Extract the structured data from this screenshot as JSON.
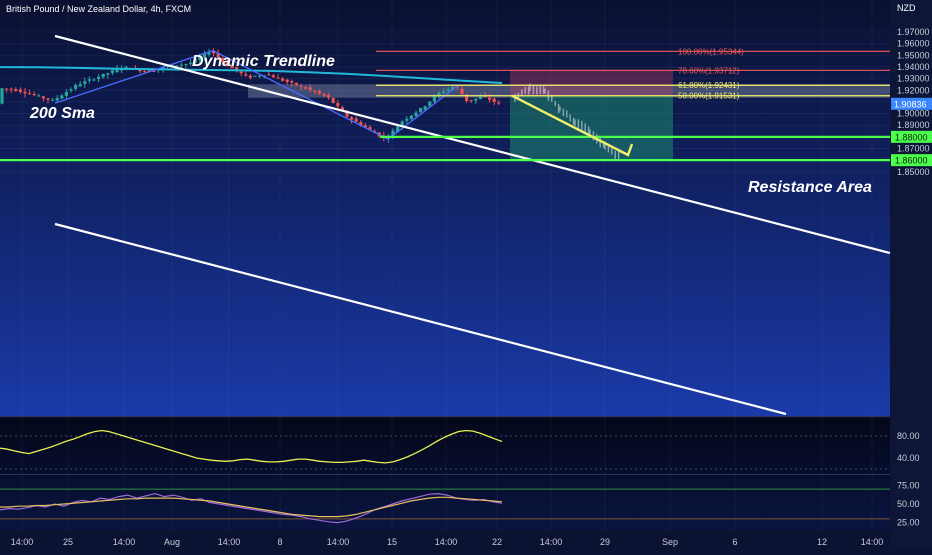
{
  "header": {
    "symbol_title": "British Pound / New Zealand Dollar, 4h, FXCM",
    "currency": "NZD"
  },
  "colors": {
    "background_top": "#0a1030",
    "background_bottom": "#1a3aa8",
    "up_candle": "#26a69a",
    "down_candle": "#ef5350",
    "sma": "#22b8d8",
    "fib_red": "#f05a5a",
    "fib_yellow": "#f5f06a",
    "support_green": "#4cff4c",
    "projection": "#f5f06a",
    "price_tag": "#3a86ff",
    "stoch_k": "#e8f050",
    "rsi_line": "#9c6ad8",
    "rsi_ma": "#e8c060"
  },
  "chart_data": [
    {
      "type": "candlestick",
      "title": "British Pound / New Zealand Dollar, 4h, FXCM",
      "ylabel": "NZD",
      "ylim": [
        1.8425,
        1.9753
      ],
      "grid": true,
      "price_ticks": [
        "1.97000",
        "1.96000",
        "1.95000",
        "1.94000",
        "1.93000",
        "1.92000",
        "1.91000",
        "1.90000",
        "1.89000",
        "1.88000",
        "1.87000",
        "1.86000",
        "1.85000"
      ],
      "x_tick_labels": [
        "14:00",
        "25",
        "14:00",
        "Aug",
        "14:00",
        "8",
        "14:00",
        "15",
        "14:00",
        "22",
        "14:00",
        "29",
        "Sep",
        "6",
        "12",
        "14:00"
      ],
      "current_price": {
        "label": "1.90836",
        "value": 1.90836
      },
      "sma_200": [
        1.9399,
        1.9398,
        1.9392,
        1.9385,
        1.938,
        1.9376,
        1.9371,
        1.9366,
        1.9355,
        1.934,
        1.9322,
        1.9302,
        1.9281,
        1.9262
      ],
      "pivots": [
        {
          "name": "start-low",
          "price": 1.909
        },
        {
          "name": "peak",
          "price": 1.954
        },
        {
          "name": "trough",
          "price": 1.878
        },
        {
          "name": "recovery-high",
          "price": 1.924
        }
      ],
      "fib_levels": [
        {
          "label": "100.00%(1.95344)",
          "value": 1.95344,
          "color": "#f05a5a"
        },
        {
          "label": "78.60%(1.93712)",
          "value": 1.93712,
          "color": "#f05a5a"
        },
        {
          "label": "61.80%(1.92431)",
          "value": 1.92431,
          "color": "#f5f06a"
        },
        {
          "label": "50.00%(1.91531)",
          "value": 1.91531,
          "color": "#f5f06a"
        }
      ],
      "support_levels": [
        {
          "label": "1.88000",
          "value": 1.88
        },
        {
          "label": "1.86000",
          "value": 1.86
        }
      ],
      "resistance_zone": {
        "label": "Resistance Area",
        "low": 1.9153,
        "high": 1.9243
      },
      "trade_box": {
        "entry": 1.9153,
        "stop": 1.9371,
        "target": 1.861
      },
      "projection": {
        "from": 1.9153,
        "to": 1.861
      },
      "annotations": [
        "Dynamic Trendline",
        "200 Sma"
      ]
    },
    {
      "type": "line",
      "name": "stochastic",
      "ylim": [
        20,
        100
      ],
      "ticks": [
        "80.00",
        "40.00"
      ],
      "levels": [
        80,
        20
      ],
      "series": [
        {
          "values": [
            58,
            56,
            53,
            50,
            48,
            52,
            56,
            60,
            65,
            70,
            74,
            79,
            84,
            88,
            90,
            88,
            84,
            80,
            76,
            72,
            68,
            64,
            60,
            56,
            52,
            48,
            44,
            40,
            38,
            36,
            35,
            34,
            35,
            37,
            38,
            36,
            34,
            33,
            33,
            34,
            36,
            38,
            38,
            36,
            34,
            33,
            32,
            32,
            33,
            34,
            36,
            34,
            32,
            31,
            33,
            37,
            42,
            48,
            55,
            62,
            70,
            77,
            83,
            88,
            90,
            89,
            85,
            80,
            75,
            70
          ]
        }
      ]
    },
    {
      "type": "line",
      "name": "rsi",
      "ylim": [
        15,
        85
      ],
      "ticks": [
        "75.00",
        "50.00",
        "25.00"
      ],
      "levels": [
        70,
        30
      ],
      "series": [
        {
          "values": [
            42,
            44,
            43,
            45,
            48,
            46,
            50,
            47,
            52,
            55,
            53,
            58,
            56,
            60,
            62,
            58,
            61,
            64,
            60,
            62,
            59,
            55,
            57,
            52,
            50,
            48,
            46,
            44,
            42,
            40,
            38,
            36,
            35,
            33,
            30,
            28,
            26,
            25,
            27,
            31,
            36,
            42,
            46,
            50,
            54,
            57,
            60,
            63,
            64,
            62,
            58,
            56,
            55,
            56,
            53,
            51
          ]
        },
        {
          "values": [
            46,
            46,
            47,
            47,
            48,
            48,
            49,
            50,
            51,
            52,
            53,
            54,
            55,
            56,
            57,
            57,
            58,
            58,
            58,
            58,
            57,
            56,
            55,
            54,
            52,
            50,
            48,
            46,
            44,
            42,
            40,
            38,
            36,
            35,
            34,
            33,
            33,
            33,
            34,
            36,
            39,
            42,
            45,
            48,
            51,
            54,
            56,
            58,
            59,
            59,
            58,
            57,
            56,
            55,
            54,
            53
          ]
        }
      ]
    }
  ]
}
